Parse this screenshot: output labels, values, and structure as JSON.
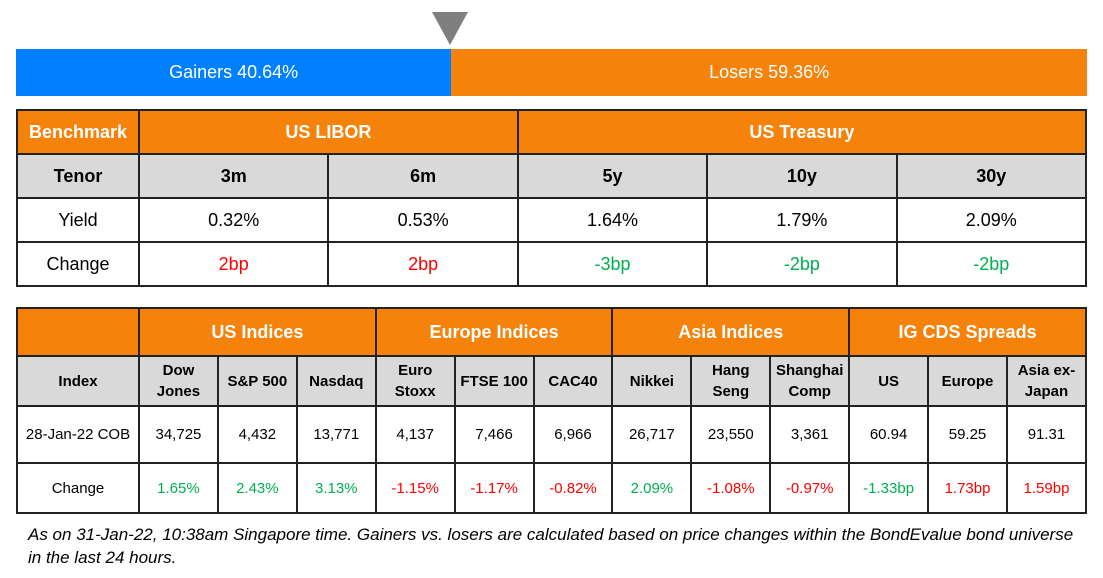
{
  "gainers_losers": {
    "gainers_label": "Gainers 40.64%",
    "losers_label": "Losers 59.36%",
    "gainers_pct": 40.64,
    "losers_pct": 59.36,
    "gainers_color": "#0080ff",
    "losers_color": "#f5820a"
  },
  "rates": {
    "benchmark_label": "Benchmark",
    "libor_label": "US LIBOR",
    "treasury_label": "US Treasury",
    "tenor_label": "Tenor",
    "yield_label": "Yield",
    "change_label": "Change",
    "tenors": [
      "3m",
      "6m",
      "5y",
      "10y",
      "30y"
    ],
    "yields": [
      "0.32%",
      "0.53%",
      "1.64%",
      "1.79%",
      "2.09%"
    ],
    "changes": [
      "2bp",
      "2bp",
      "-3bp",
      "-2bp",
      "-2bp"
    ]
  },
  "indices": {
    "groups": [
      "US Indices",
      "Europe Indices",
      "Asia Indices",
      "IG CDS Spreads"
    ],
    "index_label": "Index",
    "date_label": "28-Jan-22 COB",
    "change_label": "Change",
    "columns": [
      "Dow Jones",
      "S&P 500",
      "Nasdaq",
      "Euro Stoxx",
      "FTSE 100",
      "CAC40",
      "Nikkei",
      "Hang Seng",
      "Shanghai Comp",
      "US",
      "Europe",
      "Asia ex-Japan"
    ],
    "values": [
      "34,725",
      "4,432",
      "13,771",
      "4,137",
      "7,466",
      "6,966",
      "26,717",
      "23,550",
      "3,361",
      "60.94",
      "59.25",
      "91.31"
    ],
    "changes": [
      "1.65%",
      "2.43%",
      "3.13%",
      "-1.15%",
      "-1.17%",
      "-0.82%",
      "2.09%",
      "-1.08%",
      "-0.97%",
      "-1.33bp",
      "1.73bp",
      "1.59bp"
    ],
    "change_signs": [
      "pos",
      "pos",
      "pos",
      "neg",
      "neg",
      "neg",
      "pos",
      "neg",
      "neg",
      "pos",
      "neg",
      "neg"
    ]
  },
  "footnote": "As on 31-Jan-22, 10:38am Singapore time. Gainers vs. losers are calculated based on price changes within the BondEvalue bond universe in the last 24 hours.",
  "chart_data": {
    "type": "table",
    "gainers_pct": 40.64,
    "losers_pct": 59.36
  }
}
